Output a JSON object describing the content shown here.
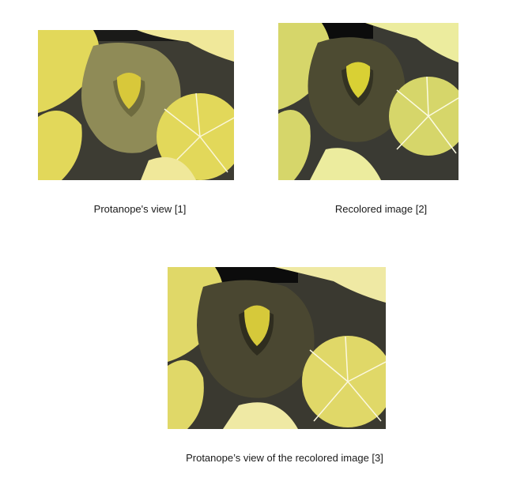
{
  "figures": [
    {
      "caption": "Protanope's view [1]",
      "palette": {
        "background": "#3d3c33",
        "leaf": "#e2d85a",
        "leaf_light": "#f0e89a",
        "vein": "#faf6d8",
        "petal": "#8f8b57",
        "petal_dark": "#6e6b3f",
        "center": "#d8c83a"
      }
    },
    {
      "caption": "Recolored image [2]",
      "palette": {
        "background": "#3a3a33",
        "leaf": "#d6d66a",
        "leaf_light": "#ecec9e",
        "vein": "#fbfbe2",
        "petal": "#4d4b32",
        "petal_dark": "#333222",
        "center": "#d9d034"
      }
    },
    {
      "caption": "Protanope’s view of the recolored image [3]",
      "palette": {
        "background": "#3a3930",
        "leaf": "#e0d868",
        "leaf_light": "#efe9a4",
        "vein": "#fbf8e0",
        "petal": "#4a4731",
        "petal_dark": "#2f2d1f",
        "center": "#d6c93a"
      }
    }
  ]
}
